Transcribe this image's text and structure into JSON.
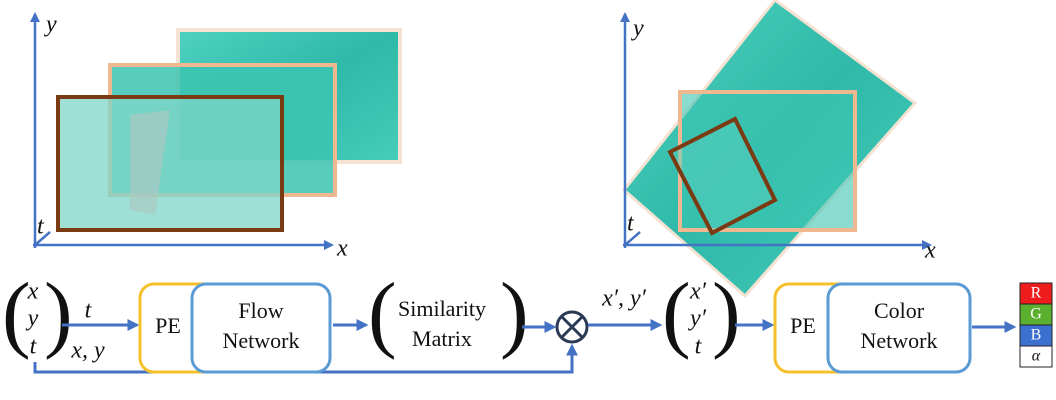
{
  "panels": [
    {
      "axes": {
        "y": "y",
        "t": "t",
        "x": "x"
      }
    },
    {
      "axes": {
        "y": "y",
        "t": "t",
        "x": "x"
      }
    }
  ],
  "pipeline": {
    "input": [
      "x",
      "y",
      "t"
    ],
    "t_label": "t",
    "xy_label": "x, y",
    "pe_1": "PE",
    "flow_network": [
      "Flow",
      "Network"
    ],
    "similarity_matrix": [
      "Similarity",
      "Matrix"
    ],
    "warped_label": "x′, y′",
    "warped_input": [
      "x′",
      "y′",
      "t"
    ],
    "pe_2": "PE",
    "color_network": [
      "Color",
      "Network"
    ],
    "outputs": [
      "R",
      "G",
      "B",
      "α"
    ]
  }
}
